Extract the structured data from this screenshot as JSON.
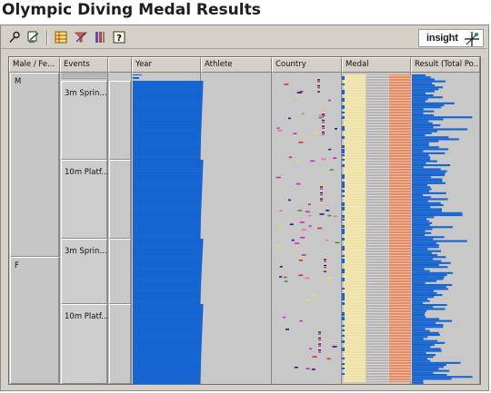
{
  "page": {
    "title": "Olympic Diving Medal Results"
  },
  "toolbar": {
    "buttons": [
      {
        "name": "pin-tool-button",
        "icon": "pin-icon"
      },
      {
        "name": "zoom-tool-button",
        "icon": "zoom-icon"
      },
      {
        "name": "data-table-button",
        "icon": "table-icon"
      },
      {
        "name": "filter-button",
        "icon": "filter-icon"
      },
      {
        "name": "column-button",
        "icon": "columns-icon"
      },
      {
        "name": "help-button",
        "icon": "help-icon",
        "glyph": "?"
      }
    ],
    "logo_text": "insight"
  },
  "columns": [
    {
      "key": "gender",
      "label": "Male / Fe..."
    },
    {
      "key": "events",
      "label": "Events"
    },
    {
      "key": "spacer",
      "label": ""
    },
    {
      "key": "year",
      "label": "Year"
    },
    {
      "key": "athlete",
      "label": "Athlete"
    },
    {
      "key": "country",
      "label": "Country"
    },
    {
      "key": "medal",
      "label": "Medal"
    },
    {
      "key": "result",
      "label": "Result (Total Po..."
    }
  ],
  "groups": [
    {
      "gender": "M",
      "events": [
        "3m Sprin...",
        "10m Platf..."
      ]
    },
    {
      "gender": "F",
      "events": [
        "3m Sprin...",
        "10m Platf..."
      ]
    }
  ],
  "colors": {
    "bar_blue": "#1464d2",
    "medal_gold": "#f2e29a",
    "medal_silver": "#b4b4b4",
    "medal_bronze": "#e68c64",
    "country_magenta": "#cc22cc",
    "country_yellow": "#f0e040",
    "country_navy": "#1a1a8c",
    "country_green": "#30a030",
    "country_red": "#d03030",
    "country_pink": "#ff60c0"
  }
}
